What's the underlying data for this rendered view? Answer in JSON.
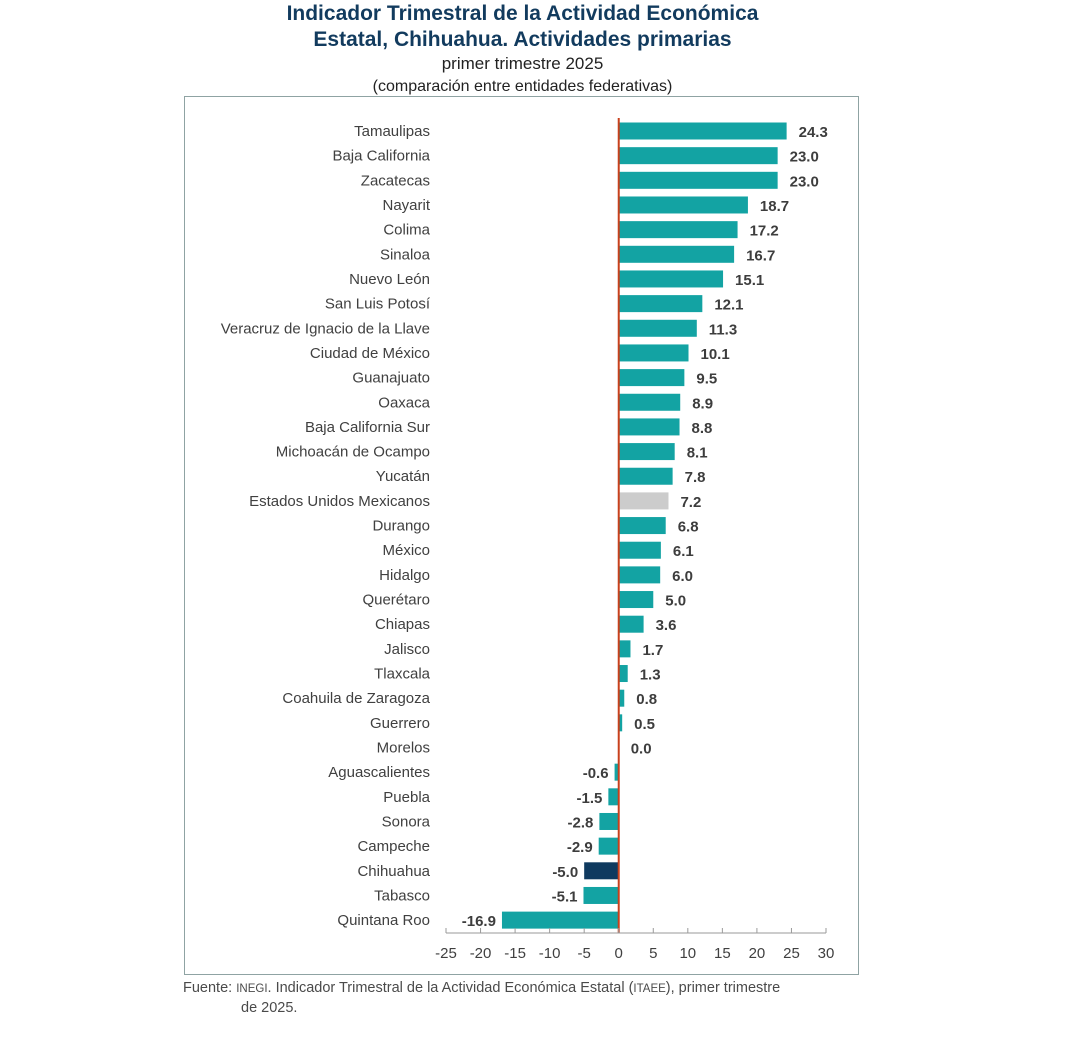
{
  "chart_data": {
    "type": "bar",
    "orientation": "horizontal",
    "title": "Indicador Trimestral de la Actividad Económica Estatal, Chihuahua. Actividades primarias",
    "title_lines": [
      "Indicador Trimestral de la Actividad Económica",
      "Estatal, Chihuahua. Actividades primarias"
    ],
    "subtitle": "primer trimestre 2025",
    "subtitle2": "(comparación entre entidades federativas)",
    "xlabel": "",
    "ylabel": "",
    "xlim": [
      -25,
      30
    ],
    "xticks": [
      -25,
      -20,
      -15,
      -10,
      -5,
      0,
      5,
      10,
      15,
      20,
      25,
      30
    ],
    "grid": false,
    "legend": "none",
    "categories": [
      "Tamaulipas",
      "Baja California",
      "Zacatecas",
      "Nayarit",
      "Colima",
      "Sinaloa",
      "Nuevo León",
      "San Luis Potosí",
      "Veracruz de Ignacio de la Llave",
      "Ciudad de México",
      "Guanajuato",
      "Oaxaca",
      "Baja California Sur",
      "Michoacán de Ocampo",
      "Yucatán",
      "Estados Unidos Mexicanos",
      "Durango",
      "México",
      "Hidalgo",
      "Querétaro",
      "Chiapas",
      "Jalisco",
      "Tlaxcala",
      "Coahuila de Zaragoza",
      "Guerrero",
      "Morelos",
      "Aguascalientes",
      "Puebla",
      "Sonora",
      "Campeche",
      "Chihuahua",
      "Tabasco",
      "Quintana Roo"
    ],
    "values": [
      24.3,
      23.0,
      23.0,
      18.7,
      17.2,
      16.7,
      15.1,
      12.1,
      11.3,
      10.1,
      9.5,
      8.9,
      8.8,
      8.1,
      7.8,
      7.2,
      6.8,
      6.1,
      6.0,
      5.0,
      3.6,
      1.7,
      1.3,
      0.8,
      0.5,
      0.0,
      -0.6,
      -1.5,
      -2.8,
      -2.9,
      -5.0,
      -5.1,
      -16.9
    ],
    "highlight": {
      "Chihuahua": "highlight",
      "Estados Unidos Mexicanos": "national"
    },
    "colors": {
      "default": "#13a3a3",
      "highlight": "#0f3a5f",
      "national": "#cccccc",
      "zero_line": "#c8401c",
      "axis": "#9a9a9a",
      "frame": "#8fa3a3",
      "title": "#123b5e",
      "label": "#404040",
      "value_label": "#3d3d3d"
    }
  },
  "source": {
    "prefix": "Fuente: ",
    "org": "INEGI",
    "text1": ". Indicador Trimestral de la Actividad Económica Estatal (",
    "abbr": "ITAEE",
    "text2": "), primer trimestre",
    "line2": "de 2025."
  }
}
